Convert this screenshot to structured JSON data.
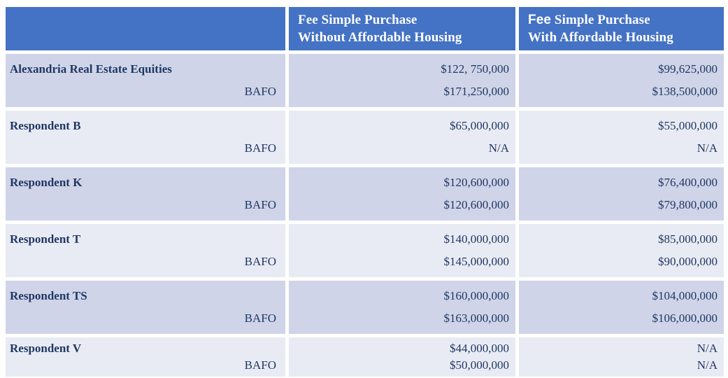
{
  "table": {
    "title_semantic": "Fee Simple Purchase pricing comparison by respondent",
    "bafo_label": "BAFO",
    "header": {
      "col1": "",
      "col2_line1": "Fee Simple Purchase",
      "col2_line2": "Without Affordable Housing",
      "col3_fee": "Fee",
      "col3_line1_rest": " Simple Purchase",
      "col3_line2": "With Affordable Housing"
    },
    "rows": [
      {
        "name": "Alexandria Real Estate Equities",
        "without_initial": "$122, 750,000",
        "without_bafo": "$171,250,000",
        "with_initial": "$99,625,000",
        "with_bafo": "$138,500,000"
      },
      {
        "name": "Respondent B",
        "without_initial": "$65,000,000",
        "without_bafo": "N/A",
        "with_initial": "$55,000,000",
        "with_bafo": "N/A"
      },
      {
        "name": "Respondent K",
        "without_initial": "$120,600,000",
        "without_bafo": "$120,600,000",
        "with_initial": "$76,400,000",
        "with_bafo": "$79,800,000"
      },
      {
        "name": "Respondent T",
        "without_initial": "$140,000,000",
        "without_bafo": "$145,000,000",
        "with_initial": "$85,000,000",
        "with_bafo": "$90,000,000"
      },
      {
        "name": "Respondent TS",
        "without_initial": "$160,000,000",
        "without_bafo": "$163,000,000",
        "with_initial": "$104,000,000",
        "with_bafo": "$106,000,000"
      },
      {
        "name": "Respondent V",
        "without_initial": "$44,000,000",
        "without_bafo": "$50,000,000",
        "with_initial": "N/A",
        "with_bafo": "N/A"
      }
    ]
  },
  "colors": {
    "header_blue": "#4472C4",
    "band_dark": "#CFD4E8",
    "band_light": "#E9EBF4",
    "text_navy": "#1F3864",
    "header_text": "#FFFFFF",
    "page_bg": "#FFFFFF"
  }
}
